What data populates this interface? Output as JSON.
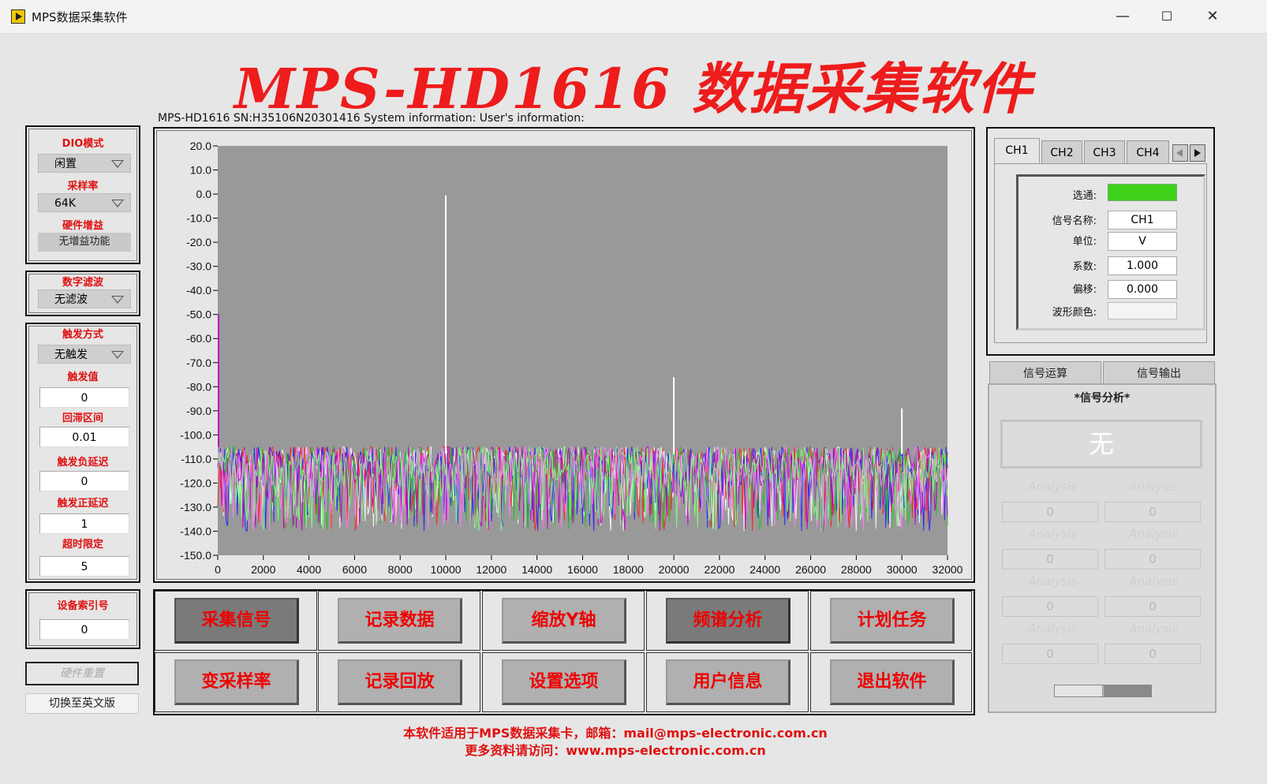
{
  "window": {
    "title": "MPS数据采集软件",
    "minimize": "—",
    "maximize": "☐",
    "close": "✕"
  },
  "header": {
    "title": "MPS-HD1616 数据采集软件",
    "sysinfo": "MPS-HD1616 SN:H35106N20301416 System information: User's information:"
  },
  "left": {
    "dio_label": "DIO模式",
    "dio_value": "闲置",
    "rate_label": "采样率",
    "rate_value": "64K",
    "gain_label": "硬件增益",
    "gain_value": "无增益功能",
    "filter_label": "数字滤波",
    "filter_value": "无滤波",
    "trigger_mode_label": "触发方式",
    "trigger_mode_value": "无触发",
    "trigger_value_label": "触发值",
    "trigger_value": "0",
    "hysteresis_label": "回滞区间",
    "hysteresis_value": "0.01",
    "neg_delay_label": "触发负延迟",
    "neg_delay_value": "0",
    "pos_delay_label": "触发正延迟",
    "pos_delay_value": "1",
    "timeout_label": "超时限定",
    "timeout_value": "5",
    "device_index_label": "设备索引号",
    "device_index_value": "0",
    "hw_reset": "硬件重置",
    "switch_lang": "切换至英文版"
  },
  "chart_data": {
    "type": "line",
    "title": "",
    "xlabel": "",
    "ylabel": "",
    "xlim": [
      0,
      32000
    ],
    "ylim": [
      -150,
      20
    ],
    "x_ticks": [
      "0",
      "2000",
      "4000",
      "6000",
      "8000",
      "10000",
      "12000",
      "14000",
      "16000",
      "18000",
      "20000",
      "22000",
      "24000",
      "26000",
      "28000",
      "30000",
      "32000"
    ],
    "y_ticks": [
      "20.0",
      "10.0",
      "0.0",
      "-10.0",
      "-20.0",
      "-30.0",
      "-40.0",
      "-50.0",
      "-60.0",
      "-70.0",
      "-80.0",
      "-90.0",
      "-100.0",
      "-110.0",
      "-120.0",
      "-130.0",
      "-140.0",
      "-150.0"
    ],
    "noise_floor": [
      -148,
      -105
    ],
    "peaks": [
      {
        "x": 10000,
        "y": -0.5
      },
      {
        "x": 20000,
        "y": -76
      },
      {
        "x": 30000,
        "y": -89
      }
    ],
    "series_colors": [
      "#ffffff",
      "#ff2020",
      "#2020ff",
      "#20c020",
      "#c000c0",
      "#ff80ff",
      "#80ff80"
    ],
    "plot_bg": "#999999"
  },
  "buttons": {
    "row1": [
      "采集信号",
      "记录数据",
      "缩放Y轴",
      "频谱分析",
      "计划任务"
    ],
    "row2": [
      "变采样率",
      "记录回放",
      "设置选项",
      "用户信息",
      "退出软件"
    ]
  },
  "channel": {
    "tabs": [
      "CH1",
      "CH2",
      "CH3",
      "CH4"
    ],
    "strobe_label": "选通:",
    "name_label": "信号名称:",
    "name_value": "CH1",
    "unit_label": "单位:",
    "unit_value": "V",
    "coef_label": "系数:",
    "coef_value": "1.000",
    "offset_label": "偏移:",
    "offset_value": "0.000",
    "color_label": "波形颜色:",
    "strobe_color": "#3fd21a"
  },
  "analysis": {
    "tabs": [
      "信号运算",
      "信号输出"
    ],
    "title": "*信号分析*",
    "result": "无",
    "label": "Analysis",
    "values": [
      "0",
      "0",
      "0",
      "0",
      "0",
      "0",
      "0",
      "0"
    ]
  },
  "footer": {
    "line1": "本软件适用于MPS数据采集卡，邮箱：mail@mps-electronic.com.cn",
    "line2": "更多资料请访问：www.mps-electronic.com.cn"
  }
}
